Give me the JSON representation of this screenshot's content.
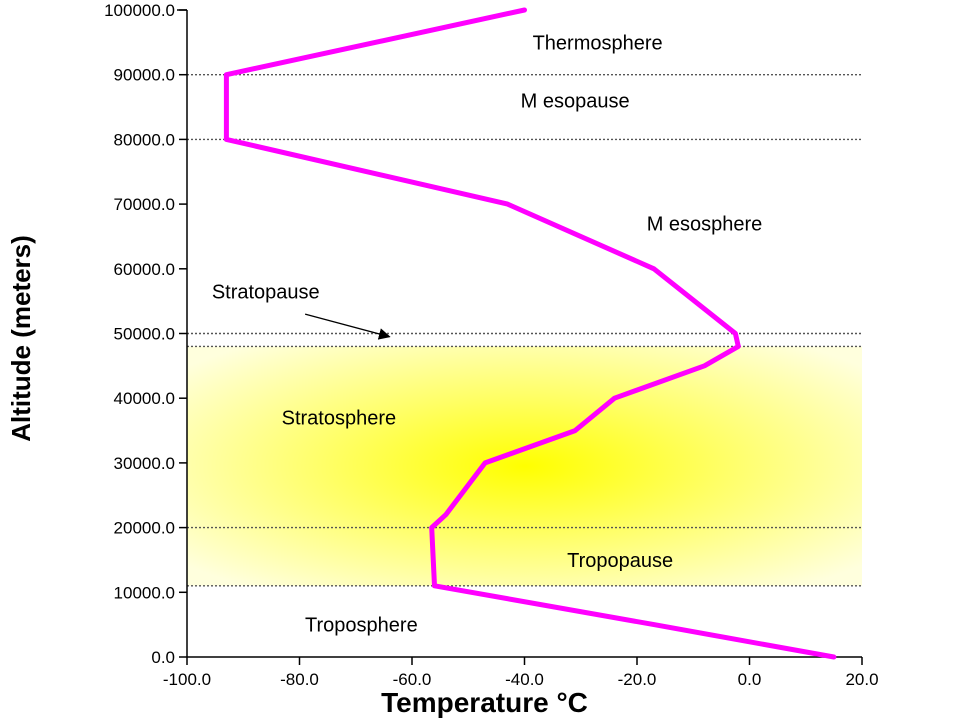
{
  "chart_data": {
    "type": "line",
    "xlabel": "Temperature °C",
    "ylabel": "Altitude (meters)",
    "xlim": [
      -100,
      20
    ],
    "ylim": [
      0,
      100000
    ],
    "x_ticks": [
      "-100.0",
      "-80.0",
      "-60.0",
      "-40.0",
      "-20.0",
      "0.0",
      "20.0"
    ],
    "y_ticks": [
      "0.0",
      "10000.0",
      "20000.0",
      "30000.0",
      "40000.0",
      "50000.0",
      "60000.0",
      "70000.0",
      "80000.0",
      "90000.0",
      "100000.0"
    ],
    "series": [
      {
        "color": "#ff00ff",
        "points": [
          {
            "x": 15,
            "y": 0
          },
          {
            "x": -17,
            "y": 5000
          },
          {
            "x": -56,
            "y": 11000
          },
          {
            "x": -56.5,
            "y": 20000
          },
          {
            "x": -54,
            "y": 22000
          },
          {
            "x": -47,
            "y": 30000
          },
          {
            "x": -31,
            "y": 35000
          },
          {
            "x": -24,
            "y": 40000
          },
          {
            "x": -8,
            "y": 45000
          },
          {
            "x": -2,
            "y": 48000
          },
          {
            "x": -2.5,
            "y": 50000
          },
          {
            "x": -17,
            "y": 60000
          },
          {
            "x": -43,
            "y": 70000
          },
          {
            "x": -93,
            "y": 80000
          },
          {
            "x": -93,
            "y": 90000
          },
          {
            "x": -40,
            "y": 100000
          }
        ]
      }
    ],
    "boundaries": [
      11000,
      20000,
      48000,
      50000,
      80000,
      90000
    ],
    "shaded_band": {
      "from": 11000,
      "to": 48000,
      "color": "#ffff00"
    },
    "annotations": [
      {
        "text": "Thermosphere",
        "x": -27,
        "y": 95000
      },
      {
        "text": "M esopause",
        "x": -31,
        "y": 86000
      },
      {
        "text": "M esosphere",
        "x": -8,
        "y": 67000
      },
      {
        "text": "Stratopause",
        "x": -86,
        "y": 56500
      },
      {
        "text": "Stratosphere",
        "x": -73,
        "y": 37000
      },
      {
        "text": "Tropopause",
        "x": -23,
        "y": 15000
      },
      {
        "text": "Troposphere",
        "x": -69,
        "y": 5000
      }
    ],
    "arrow": {
      "from": {
        "x": -79,
        "y": 53000
      },
      "to": {
        "x": -64,
        "y": 49500
      }
    },
    "grid": false,
    "legend": "none"
  }
}
